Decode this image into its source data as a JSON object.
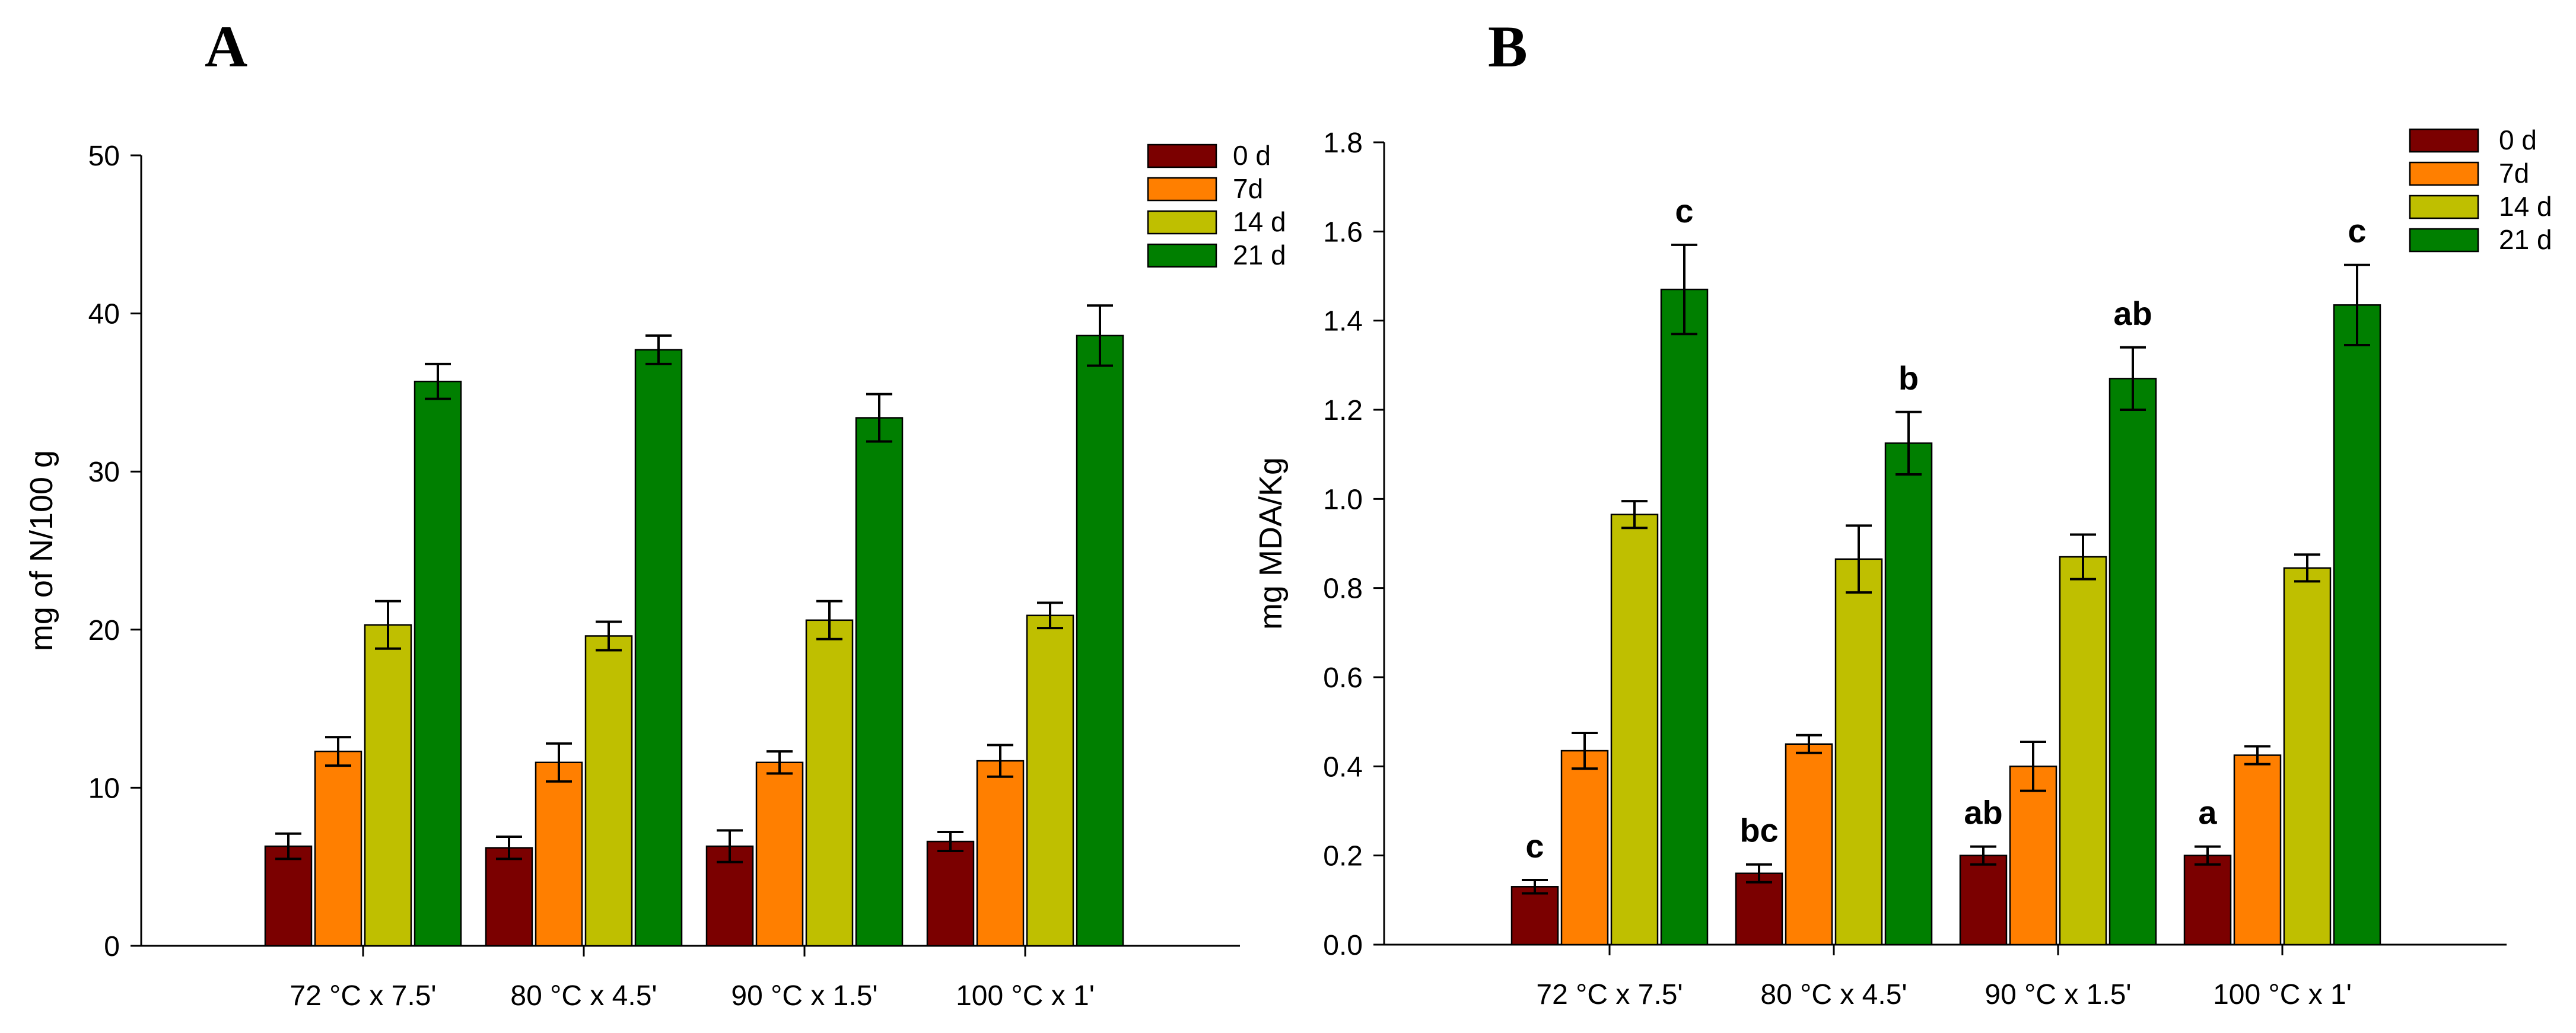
{
  "chart_data": [
    {
      "panel": "A",
      "type": "bar",
      "categories": [
        "72 °C x 7.5'",
        "80 °C x 4.5'",
        "90 °C x 1.5'",
        "100 °C x 1'"
      ],
      "ylabel": "mg of N/100 g",
      "xlabel": "",
      "ylim": [
        0,
        50
      ],
      "yticks": [
        "0",
        "10",
        "20",
        "30",
        "40",
        "50"
      ],
      "legend_position": "top-right",
      "series": [
        {
          "name": "0 d",
          "color": "#7b0000",
          "values": [
            6.3,
            6.2,
            6.3,
            6.6
          ],
          "errors": [
            0.8,
            0.7,
            1.0,
            0.6
          ]
        },
        {
          "name": "7d",
          "color": "#ff7f00",
          "values": [
            12.3,
            11.6,
            11.6,
            11.7
          ],
          "errors": [
            0.9,
            1.2,
            0.7,
            1.0
          ]
        },
        {
          "name": "14 d",
          "color": "#bfbf00",
          "values": [
            20.3,
            19.6,
            20.6,
            20.9
          ],
          "errors": [
            1.5,
            0.9,
            1.2,
            0.8
          ]
        },
        {
          "name": "21 d",
          "color": "#007f00",
          "values": [
            35.7,
            37.7,
            33.4,
            38.6
          ],
          "errors": [
            1.1,
            0.9,
            1.5,
            1.9
          ]
        }
      ],
      "annotations": []
    },
    {
      "panel": "B",
      "type": "bar",
      "categories": [
        "72 °C x 7.5'",
        "80 °C x 4.5'",
        "90 °C x 1.5'",
        "100 °C x 1'"
      ],
      "ylabel": "mg MDA/Kg",
      "xlabel": "",
      "ylim": [
        0,
        1.8
      ],
      "yticks": [
        "0.0",
        "0.2",
        "0.4",
        "0.6",
        "0.8",
        "1.0",
        "1.2",
        "1.4",
        "1.6",
        "1.8"
      ],
      "legend_position": "top-right",
      "series": [
        {
          "name": "0 d",
          "color": "#7b0000",
          "values": [
            0.13,
            0.16,
            0.2,
            0.2
          ],
          "errors": [
            0.015,
            0.02,
            0.02,
            0.02
          ]
        },
        {
          "name": "7d",
          "color": "#ff7f00",
          "values": [
            0.435,
            0.45,
            0.4,
            0.425
          ],
          "errors": [
            0.04,
            0.02,
            0.055,
            0.02
          ]
        },
        {
          "name": "14 d",
          "color": "#bfbf00",
          "values": [
            0.965,
            0.865,
            0.87,
            0.845
          ],
          "errors": [
            0.03,
            0.075,
            0.05,
            0.03
          ]
        },
        {
          "name": "21 d",
          "color": "#007f00",
          "values": [
            1.47,
            1.125,
            1.27,
            1.435
          ],
          "errors": [
            0.1,
            0.07,
            0.07,
            0.09
          ]
        }
      ],
      "annotations": [
        {
          "series": 0,
          "category": 0,
          "text": "c"
        },
        {
          "series": 0,
          "category": 1,
          "text": "bc"
        },
        {
          "series": 0,
          "category": 2,
          "text": "ab"
        },
        {
          "series": 0,
          "category": 3,
          "text": "a"
        },
        {
          "series": 3,
          "category": 0,
          "text": "c"
        },
        {
          "series": 3,
          "category": 1,
          "text": "b"
        },
        {
          "series": 3,
          "category": 2,
          "text": "ab"
        },
        {
          "series": 3,
          "category": 3,
          "text": "c"
        }
      ]
    }
  ]
}
